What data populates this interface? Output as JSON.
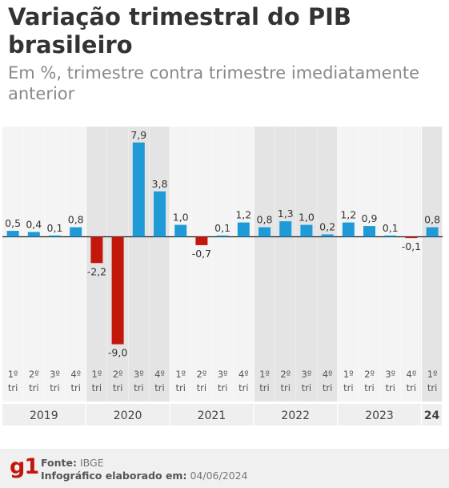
{
  "title": "Variação trimestral do PIB brasileiro",
  "subtitle": "Em %, trimestre contra trimestre imediatamente anterior",
  "chart_data": {
    "type": "bar",
    "quarter_labels": [
      "1º tri",
      "2º tri",
      "3º tri",
      "4º tri",
      "1º tri",
      "2º tri",
      "3º tri",
      "4º tri",
      "1º tri",
      "2º tri",
      "3º tri",
      "4º tri",
      "1º tri",
      "2º tri",
      "3º tri",
      "4º tri",
      "1º tri",
      "2º tri",
      "3º tri",
      "4º tri",
      "1º tri"
    ],
    "values": [
      0.5,
      0.4,
      0.1,
      0.8,
      -2.2,
      -9.0,
      7.9,
      3.8,
      1.0,
      -0.7,
      0.1,
      1.2,
      0.8,
      1.3,
      1.0,
      0.2,
      1.2,
      0.9,
      0.1,
      -0.1,
      0.8
    ],
    "value_labels": [
      "0,5",
      "0,4",
      "0,1",
      "0,8",
      "-2,2",
      "-9,0",
      "7,9",
      "3,8",
      "1,0",
      "-0,7",
      "0,1",
      "1,2",
      "0,8",
      "1,3",
      "1,0",
      "0,2",
      "1,2",
      "0,9",
      "0,1",
      "-0,1",
      "0,8"
    ],
    "years": [
      {
        "label": "2019",
        "quarters": 4
      },
      {
        "label": "2020",
        "quarters": 4
      },
      {
        "label": "2021",
        "quarters": 4
      },
      {
        "label": "2022",
        "quarters": 4
      },
      {
        "label": "2023",
        "quarters": 4
      },
      {
        "label": "24",
        "quarters": 1
      }
    ],
    "ylim": [
      -9.6,
      8.8
    ],
    "colors": {
      "positive": "#1e9bd7",
      "negative": "#c4170c",
      "band_light": "#f4f4f4",
      "band_dark": "#e4e4e4"
    }
  },
  "footer": {
    "logo": "g1",
    "source_label": "Fonte:",
    "source_value": "IBGE",
    "made_label": "Infográfico elaborado em:",
    "made_value": "04/06/2024"
  }
}
